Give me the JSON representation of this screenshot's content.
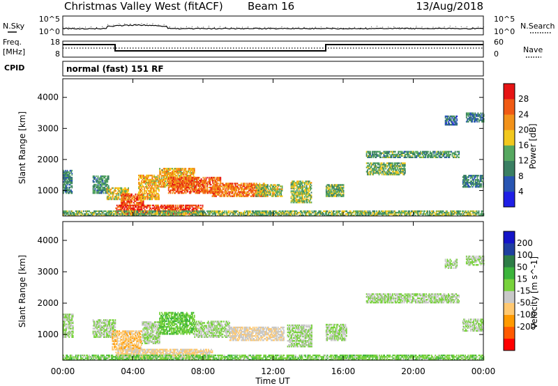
{
  "header": {
    "title": "Christmas Valley West (fitACF)",
    "beam": "Beam 16",
    "date": "13/Aug/2018"
  },
  "noise_panel": {
    "left_label": "N.Sky",
    "right_label": "N.Search",
    "ticks_left": [
      "10^5",
      "10^0"
    ],
    "ticks_right": [
      "10^5",
      "10^0"
    ]
  },
  "freq_panel": {
    "left_label_1": "Freq.",
    "left_label_2": "[MHz]",
    "right_label": "Nave",
    "ticks_left": [
      "18",
      "8"
    ],
    "ticks_right": [
      "60",
      "0"
    ]
  },
  "cpid": {
    "label": "CPID",
    "text": "normal (fast) 151 RF"
  },
  "axes": {
    "ylabel": "Slant Range [km]",
    "yticks": [
      "4000",
      "3000",
      "2000",
      "1000"
    ],
    "xticks": [
      "00:00",
      "04:00",
      "08:00",
      "12:00",
      "16:00",
      "20:00",
      "00:00"
    ],
    "xlabel": "Time UT"
  },
  "colors": {
    "power_scale": [
      "#1f1fe6",
      "#2855b2",
      "#3a7f62",
      "#56a860",
      "#f2c81e",
      "#f2921a",
      "#f05a14",
      "#e61414"
    ],
    "velocity_scale": [
      "#ff0000",
      "#ff5a00",
      "#ff9a00",
      "#ffc870",
      "#c8c8c8",
      "#78d23c",
      "#3cb43c",
      "#2d7d46",
      "#1f3fa0",
      "#1414c8"
    ]
  },
  "chart_data": [
    {
      "type": "heatmap",
      "title": "Power",
      "xlabel": "Time UT",
      "ylabel": "Slant Range [km]",
      "xlim": [
        0,
        24
      ],
      "ylim": [
        180,
        4600
      ],
      "colorbar": {
        "label": "Power [dB]",
        "ticks": [
          "28",
          "24",
          "20",
          "16",
          "12",
          "8",
          "4"
        ],
        "range": [
          0,
          32
        ]
      },
      "regions": [
        {
          "t": [
            0.0,
            0.5
          ],
          "r": [
            900,
            1650
          ],
          "v": 10
        },
        {
          "t": [
            1.7,
            2.6
          ],
          "r": [
            900,
            1450
          ],
          "v": 11
        },
        {
          "t": [
            2.5,
            3.8
          ],
          "r": [
            700,
            1100
          ],
          "v": 18
        },
        {
          "t": [
            3.3,
            4.6
          ],
          "r": [
            500,
            900
          ],
          "v": 26
        },
        {
          "t": [
            4.3,
            5.5
          ],
          "r": [
            700,
            1500
          ],
          "v": 20
        },
        {
          "t": [
            5.5,
            7.5
          ],
          "r": [
            1100,
            1700
          ],
          "v": 20
        },
        {
          "t": [
            6.0,
            9.0
          ],
          "r": [
            900,
            1400
          ],
          "v": 26
        },
        {
          "t": [
            8.5,
            11.5
          ],
          "r": [
            800,
            1250
          ],
          "v": 24
        },
        {
          "t": [
            11.0,
            12.5
          ],
          "r": [
            800,
            1200
          ],
          "v": 16
        },
        {
          "t": [
            3.0,
            8.0
          ],
          "r": [
            230,
            520
          ],
          "v": 28
        },
        {
          "t": [
            0.0,
            24.0
          ],
          "r": [
            180,
            340
          ],
          "v": 14
        },
        {
          "t": [
            13.0,
            14.2
          ],
          "r": [
            600,
            1300
          ],
          "v": 16
        },
        {
          "t": [
            15.0,
            16.0
          ],
          "r": [
            800,
            1200
          ],
          "v": 14
        },
        {
          "t": [
            17.3,
            22.6
          ],
          "r": [
            2050,
            2250
          ],
          "v": 12
        },
        {
          "t": [
            17.3,
            19.5
          ],
          "r": [
            1500,
            1900
          ],
          "v": 14
        },
        {
          "t": [
            22.8,
            24.0
          ],
          "r": [
            1100,
            1500
          ],
          "v": 10
        },
        {
          "t": [
            23.0,
            24.0
          ],
          "r": [
            3200,
            3500
          ],
          "v": 9
        },
        {
          "t": [
            21.8,
            22.5
          ],
          "r": [
            3100,
            3400
          ],
          "v": 8
        }
      ]
    },
    {
      "type": "heatmap",
      "title": "Velocity",
      "xlabel": "Time UT",
      "ylabel": "Slant Range [km]",
      "xlim": [
        0,
        24
      ],
      "ylim": [
        180,
        4600
      ],
      "colorbar": {
        "label": "Velocity [m s^-1]",
        "ticks": [
          "200",
          "100",
          "50",
          "15",
          "-15",
          "-50",
          "-100",
          "-200"
        ],
        "range": [
          -250,
          250
        ]
      },
      "regions": [
        {
          "t": [
            0.0,
            0.6
          ],
          "r": [
            900,
            1650
          ],
          "v": 0
        },
        {
          "t": [
            1.7,
            3.0
          ],
          "r": [
            900,
            1450
          ],
          "v": 0
        },
        {
          "t": [
            2.8,
            4.5
          ],
          "r": [
            500,
            1100
          ],
          "v": -80
        },
        {
          "t": [
            4.5,
            5.5
          ],
          "r": [
            700,
            1400
          ],
          "v": 0
        },
        {
          "t": [
            5.5,
            7.5
          ],
          "r": [
            1000,
            1700
          ],
          "v": 40
        },
        {
          "t": [
            7.5,
            9.5
          ],
          "r": [
            900,
            1400
          ],
          "v": 0
        },
        {
          "t": [
            9.5,
            12.6
          ],
          "r": [
            800,
            1250
          ],
          "v": -40
        },
        {
          "t": [
            3.0,
            8.5
          ],
          "r": [
            230,
            520
          ],
          "v": -60
        },
        {
          "t": [
            0.0,
            24.0
          ],
          "r": [
            180,
            330
          ],
          "v": 30
        },
        {
          "t": [
            12.8,
            14.2
          ],
          "r": [
            600,
            1300
          ],
          "v": 0
        },
        {
          "t": [
            15.0,
            16.2
          ],
          "r": [
            800,
            1300
          ],
          "v": 0
        },
        {
          "t": [
            17.3,
            22.6
          ],
          "r": [
            2000,
            2300
          ],
          "v": 0
        },
        {
          "t": [
            22.8,
            24.0
          ],
          "r": [
            1100,
            1500
          ],
          "v": 0
        },
        {
          "t": [
            23.0,
            24.0
          ],
          "r": [
            3200,
            3500
          ],
          "v": 0
        },
        {
          "t": [
            21.8,
            22.5
          ],
          "r": [
            3100,
            3400
          ],
          "v": 0
        }
      ]
    }
  ]
}
